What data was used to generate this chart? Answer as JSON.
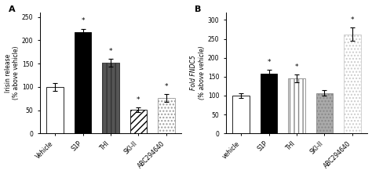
{
  "panel_A": {
    "title": "A",
    "ylabel": "Irisin release\n(% above vehicle)",
    "categories": [
      "Vehicle",
      "S1P",
      "THI",
      "SKI-II",
      "ABC294640"
    ],
    "values": [
      100,
      218,
      152,
      51,
      76
    ],
    "errors": [
      8,
      7,
      8,
      5,
      8
    ],
    "ylim": [
      0,
      260
    ],
    "yticks": [
      0,
      50,
      100,
      150,
      200,
      250
    ],
    "bars": [
      {
        "fc": "white",
        "ec": "black",
        "hatch": ""
      },
      {
        "fc": "black",
        "ec": "black",
        "hatch": ""
      },
      {
        "fc": "#555555",
        "ec": "#333333",
        "hatch": "|||"
      },
      {
        "fc": "white",
        "ec": "black",
        "hatch": "////"
      },
      {
        "fc": "white",
        "ec": "#999999",
        "hatch": "...."
      }
    ],
    "significant": [
      false,
      true,
      true,
      true,
      true
    ]
  },
  "panel_B": {
    "title": "B",
    "ylabel": "Fold FNDC5\n(% above vehicle)",
    "categories": [
      "vehicle",
      "S1P",
      "THI",
      "SKI-II",
      "ABC294640"
    ],
    "values": [
      100,
      158,
      146,
      107,
      262
    ],
    "errors": [
      6,
      10,
      10,
      8,
      18
    ],
    "ylim": [
      0,
      320
    ],
    "yticks": [
      0,
      50,
      100,
      150,
      200,
      250,
      300
    ],
    "bars": [
      {
        "fc": "white",
        "ec": "black",
        "hatch": ""
      },
      {
        "fc": "black",
        "ec": "black",
        "hatch": ""
      },
      {
        "fc": "white",
        "ec": "#888888",
        "hatch": "|||"
      },
      {
        "fc": "#aaaaaa",
        "ec": "#888888",
        "hatch": "...."
      },
      {
        "fc": "white",
        "ec": "#cccccc",
        "hatch": "...."
      }
    ],
    "significant": [
      false,
      true,
      true,
      false,
      true
    ]
  },
  "figure_bg": "#ffffff",
  "bar_width": 0.6,
  "fontsize_label": 5.5,
  "fontsize_tick": 5.5,
  "fontsize_title": 8
}
